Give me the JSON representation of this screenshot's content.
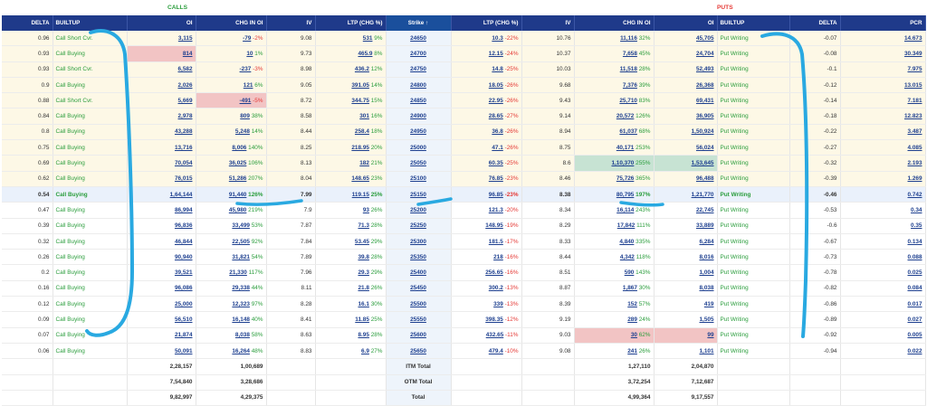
{
  "section_labels": {
    "calls": "CALLS",
    "puts": "PUTS"
  },
  "headers": [
    "DELTA",
    "BUILTUP",
    "OI",
    "CHG IN OI",
    "IV",
    "LTP (CHG %)",
    "Strike ↑",
    "LTP (CHG %)",
    "IV",
    "CHG IN OI",
    "OI",
    "BUILTUP",
    "DELTA",
    "PCR"
  ],
  "rows": [
    {
      "cd": "0.96",
      "cb": "Call Short Cvr.",
      "coi": "3,115",
      "cchg": "-79",
      "cchgp": "-2%",
      "civ": "9.08",
      "cltp": "531",
      "cltpp": "9%",
      "strike": "24650",
      "pltp": "10.3",
      "pltpp": "-22%",
      "piv": "10.76",
      "pchg": "11,116",
      "pchgp": "32%",
      "poi": "45,705",
      "pb": "Put Writing",
      "pd": "-0.07",
      "pcr": "14.673"
    },
    {
      "cd": "0.93",
      "cb": "Call Buying",
      "coi": "814",
      "cchg": "10",
      "cchgp": "1%",
      "civ": "9.73",
      "cltp": "465.9",
      "cltpp": "8%",
      "strike": "24700",
      "pltp": "12.15",
      "pltpp": "-24%",
      "piv": "10.37",
      "pchg": "7,658",
      "pchgp": "45%",
      "poi": "24,704",
      "pb": "Put Writing",
      "pd": "-0.08",
      "pcr": "30.349"
    },
    {
      "cd": "0.93",
      "cb": "Call Short Cvr.",
      "coi": "6,582",
      "cchg": "-237",
      "cchgp": "-3%",
      "civ": "8.98",
      "cltp": "436.2",
      "cltpp": "12%",
      "strike": "24750",
      "pltp": "14.8",
      "pltpp": "-25%",
      "piv": "10.03",
      "pchg": "11,518",
      "pchgp": "28%",
      "poi": "52,493",
      "pb": "Put Writing",
      "pd": "-0.1",
      "pcr": "7.975"
    },
    {
      "cd": "0.9",
      "cb": "Call Buying",
      "coi": "2,026",
      "cchg": "121",
      "cchgp": "6%",
      "civ": "9.05",
      "cltp": "391.05",
      "cltpp": "14%",
      "strike": "24800",
      "pltp": "18.05",
      "pltpp": "-26%",
      "piv": "9.68",
      "pchg": "7,376",
      "pchgp": "39%",
      "poi": "26,368",
      "pb": "Put Writing",
      "pd": "-0.12",
      "pcr": "13.015"
    },
    {
      "cd": "0.88",
      "cb": "Call Short Cvr.",
      "coi": "5,669",
      "cchg": "-491",
      "cchgp": "-5%",
      "civ": "8.72",
      "cltp": "344.75",
      "cltpp": "15%",
      "strike": "24850",
      "pltp": "22.95",
      "pltpp": "-26%",
      "piv": "9.43",
      "pchg": "25,710",
      "pchgp": "83%",
      "poi": "69,431",
      "pb": "Put Writing",
      "pd": "-0.14",
      "pcr": "7.181"
    },
    {
      "cd": "0.84",
      "cb": "Call Buying",
      "coi": "2,978",
      "cchg": "809",
      "cchgp": "38%",
      "civ": "8.58",
      "cltp": "301",
      "cltpp": "16%",
      "strike": "24900",
      "pltp": "28.65",
      "pltpp": "-27%",
      "piv": "9.14",
      "pchg": "20,572",
      "pchgp": "126%",
      "poi": "36,905",
      "pb": "Put Writing",
      "pd": "-0.18",
      "pcr": "12.823"
    },
    {
      "cd": "0.8",
      "cb": "Call Buying",
      "coi": "43,288",
      "cchg": "5,248",
      "cchgp": "14%",
      "civ": "8.44",
      "cltp": "258.4",
      "cltpp": "18%",
      "strike": "24950",
      "pltp": "36.8",
      "pltpp": "-26%",
      "piv": "8.94",
      "pchg": "61,037",
      "pchgp": "68%",
      "poi": "1,50,924",
      "pb": "Put Writing",
      "pd": "-0.22",
      "pcr": "3.487"
    },
    {
      "cd": "0.75",
      "cb": "Call Buying",
      "coi": "13,716",
      "cchg": "8,006",
      "cchgp": "140%",
      "civ": "8.25",
      "cltp": "218.95",
      "cltpp": "20%",
      "strike": "25000",
      "pltp": "47.1",
      "pltpp": "-26%",
      "piv": "8.75",
      "pchg": "40,171",
      "pchgp": "253%",
      "poi": "56,024",
      "pb": "Put Writing",
      "pd": "-0.27",
      "pcr": "4.085"
    },
    {
      "cd": "0.69",
      "cb": "Call Buying",
      "coi": "70,054",
      "cchg": "36,025",
      "cchgp": "106%",
      "civ": "8.13",
      "cltp": "182",
      "cltpp": "21%",
      "strike": "25050",
      "pltp": "60.35",
      "pltpp": "-25%",
      "piv": "8.6",
      "pchg": "1,10,370",
      "pchgp": "255%",
      "poi": "1,53,645",
      "pb": "Put Writing",
      "pd": "-0.32",
      "pcr": "2.193"
    },
    {
      "cd": "0.62",
      "cb": "Call Buying",
      "coi": "76,015",
      "cchg": "51,286",
      "cchgp": "207%",
      "civ": "8.04",
      "cltp": "148.65",
      "cltpp": "23%",
      "strike": "25100",
      "pltp": "76.85",
      "pltpp": "-23%",
      "piv": "8.46",
      "pchg": "75,726",
      "pchgp": "365%",
      "poi": "96,488",
      "pb": "Put Writing",
      "pd": "-0.39",
      "pcr": "1.269"
    },
    {
      "cd": "0.54",
      "cb": "Call Buying",
      "coi": "1,64,144",
      "cchg": "91,440",
      "cchgp": "126%",
      "civ": "7.99",
      "cltp": "119.15",
      "cltpp": "25%",
      "strike": "25150",
      "pltp": "96.85",
      "pltpp": "-23%",
      "piv": "8.38",
      "pchg": "80,795",
      "pchgp": "197%",
      "poi": "1,21,770",
      "pb": "Put Writing",
      "pd": "-0.46",
      "pcr": "0.742"
    },
    {
      "cd": "0.47",
      "cb": "Call Buying",
      "coi": "86,994",
      "cchg": "45,980",
      "cchgp": "219%",
      "civ": "7.9",
      "cltp": "93",
      "cltpp": "26%",
      "strike": "25200",
      "pltp": "121.3",
      "pltpp": "-20%",
      "piv": "8.34",
      "pchg": "16,114",
      "pchgp": "243%",
      "poi": "22,745",
      "pb": "Put Writing",
      "pd": "-0.53",
      "pcr": "0.34"
    },
    {
      "cd": "0.39",
      "cb": "Call Buying",
      "coi": "96,836",
      "cchg": "33,499",
      "cchgp": "53%",
      "civ": "7.87",
      "cltp": "71.3",
      "cltpp": "28%",
      "strike": "25250",
      "pltp": "148.95",
      "pltpp": "-19%",
      "piv": "8.29",
      "pchg": "17,842",
      "pchgp": "111%",
      "poi": "33,889",
      "pb": "Put Writing",
      "pd": "-0.6",
      "pcr": "0.35"
    },
    {
      "cd": "0.32",
      "cb": "Call Buying",
      "coi": "46,844",
      "cchg": "22,505",
      "cchgp": "92%",
      "civ": "7.84",
      "cltp": "53.45",
      "cltpp": "29%",
      "strike": "25300",
      "pltp": "181.5",
      "pltpp": "-17%",
      "piv": "8.33",
      "pchg": "4,840",
      "pchgp": "335%",
      "poi": "6,284",
      "pb": "Put Writing",
      "pd": "-0.67",
      "pcr": "0.134"
    },
    {
      "cd": "0.26",
      "cb": "Call Buying",
      "coi": "90,940",
      "cchg": "31,821",
      "cchgp": "54%",
      "civ": "7.89",
      "cltp": "39.8",
      "cltpp": "28%",
      "strike": "25350",
      "pltp": "218",
      "pltpp": "-16%",
      "piv": "8.44",
      "pchg": "4,342",
      "pchgp": "118%",
      "poi": "8,016",
      "pb": "Put Writing",
      "pd": "-0.73",
      "pcr": "0.088"
    },
    {
      "cd": "0.2",
      "cb": "Call Buying",
      "coi": "39,521",
      "cchg": "21,330",
      "cchgp": "117%",
      "civ": "7.96",
      "cltp": "29.3",
      "cltpp": "29%",
      "strike": "25400",
      "pltp": "256.65",
      "pltpp": "-16%",
      "piv": "8.51",
      "pchg": "590",
      "pchgp": "143%",
      "poi": "1,004",
      "pb": "Put Writing",
      "pd": "-0.78",
      "pcr": "0.025"
    },
    {
      "cd": "0.16",
      "cb": "Call Buying",
      "coi": "96,086",
      "cchg": "29,338",
      "cchgp": "44%",
      "civ": "8.11",
      "cltp": "21.8",
      "cltpp": "26%",
      "strike": "25450",
      "pltp": "300.2",
      "pltpp": "-13%",
      "piv": "8.87",
      "pchg": "1,867",
      "pchgp": "30%",
      "poi": "8,038",
      "pb": "Put Writing",
      "pd": "-0.82",
      "pcr": "0.084"
    },
    {
      "cd": "0.12",
      "cb": "Call Buying",
      "coi": "25,000",
      "cchg": "12,323",
      "cchgp": "97%",
      "civ": "8.28",
      "cltp": "16.1",
      "cltpp": "30%",
      "strike": "25500",
      "pltp": "339",
      "pltpp": "-13%",
      "piv": "8.39",
      "pchg": "152",
      "pchgp": "57%",
      "poi": "419",
      "pb": "Put Writing",
      "pd": "-0.86",
      "pcr": "0.017"
    },
    {
      "cd": "0.09",
      "cb": "Call Buying",
      "coi": "56,510",
      "cchg": "16,148",
      "cchgp": "40%",
      "civ": "8.41",
      "cltp": "11.85",
      "cltpp": "25%",
      "strike": "25550",
      "pltp": "398.35",
      "pltpp": "-12%",
      "piv": "9.19",
      "pchg": "289",
      "pchgp": "24%",
      "poi": "1,505",
      "pb": "Put Writing",
      "pd": "-0.89",
      "pcr": "0.027"
    },
    {
      "cd": "0.07",
      "cb": "Call Buying",
      "coi": "21,874",
      "cchg": "8,038",
      "cchgp": "58%",
      "civ": "8.63",
      "cltp": "8.95",
      "cltpp": "28%",
      "strike": "25600",
      "pltp": "432.65",
      "pltpp": "-11%",
      "piv": "9.03",
      "pchg": "30",
      "pchgp": "62%",
      "poi": "99",
      "pb": "Put Writing",
      "pd": "-0.92",
      "pcr": "0.005"
    },
    {
      "cd": "0.06",
      "cb": "Call Buying",
      "coi": "50,091",
      "cchg": "16,264",
      "cchgp": "48%",
      "civ": "8.83",
      "cltp": "6.9",
      "cltpp": "27%",
      "strike": "25650",
      "pltp": "479.4",
      "pltpp": "-10%",
      "piv": "9.08",
      "pchg": "241",
      "pchgp": "26%",
      "poi": "1,101",
      "pb": "Put Writing",
      "pd": "-0.94",
      "pcr": "0.022"
    }
  ],
  "totals": [
    {
      "label": "ITM Total",
      "coi": "2,28,157",
      "cchg": "1,00,689",
      "pchg": "1,27,110",
      "poi": "2,04,870"
    },
    {
      "label": "OTM Total",
      "coi": "7,54,840",
      "cchg": "3,28,686",
      "pchg": "3,72,254",
      "poi": "7,12,687"
    },
    {
      "label": "Total",
      "coi": "9,82,997",
      "cchg": "4,29,375",
      "pchg": "4,99,364",
      "poi": "9,17,557"
    }
  ]
}
